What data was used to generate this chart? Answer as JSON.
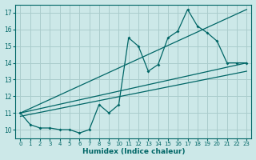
{
  "xlabel": "Humidex (Indice chaleur)",
  "bg_color": "#cce8e8",
  "grid_color": "#aacccc",
  "line_color": "#006666",
  "xlim": [
    -0.5,
    23.5
  ],
  "ylim": [
    9.5,
    17.5
  ],
  "yticks": [
    10,
    11,
    12,
    13,
    14,
    15,
    16,
    17
  ],
  "xticks": [
    0,
    1,
    2,
    3,
    4,
    5,
    6,
    7,
    8,
    9,
    10,
    11,
    12,
    13,
    14,
    15,
    16,
    17,
    18,
    19,
    20,
    21,
    22,
    23
  ],
  "series1_x": [
    0,
    1,
    2,
    3,
    4,
    5,
    6,
    7,
    8,
    9,
    10,
    11,
    12,
    13,
    14,
    15,
    16,
    17,
    18,
    19,
    20,
    21,
    22,
    23
  ],
  "series1_y": [
    11.0,
    10.3,
    10.1,
    10.1,
    10.0,
    10.0,
    9.8,
    10.0,
    11.5,
    11.0,
    11.5,
    15.5,
    15.0,
    13.5,
    13.9,
    15.5,
    15.9,
    17.2,
    16.2,
    15.8,
    15.3,
    14.0,
    14.0,
    14.0
  ],
  "series2_x": [
    0,
    23
  ],
  "series2_y": [
    11.0,
    14.0
  ],
  "series3_x": [
    0,
    23
  ],
  "series3_y": [
    10.8,
    13.5
  ],
  "series4_x": [
    0,
    23
  ],
  "series4_y": [
    11.0,
    17.2
  ]
}
